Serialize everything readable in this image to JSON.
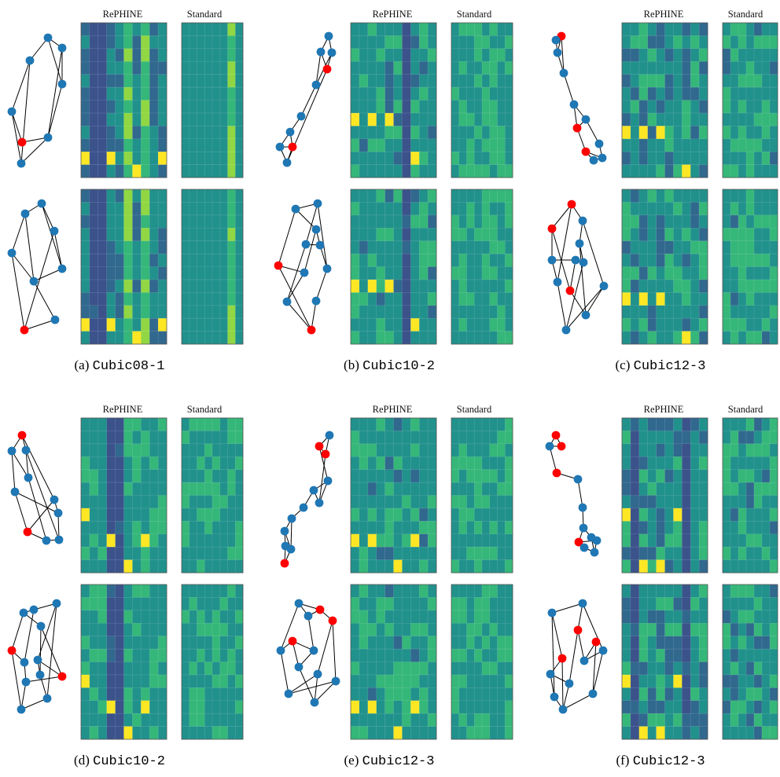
{
  "header_labels": [
    "RePHINE",
    "Standard"
  ],
  "colormap": [
    "#3b528b",
    "#31688e",
    "#21918c",
    "#35b779",
    "#90d743",
    "#fde725"
  ],
  "node_colors": {
    "normal": "#1f77b4",
    "highlighted": "#ff0000"
  },
  "panels": [
    {
      "tag": "(a)",
      "name": "Cubic08-1"
    },
    {
      "tag": "(b)",
      "name": "Cubic10-2"
    },
    {
      "tag": "(c)",
      "name": "Cubic12-3"
    },
    {
      "tag": "(d)",
      "name": "Cubic10-2"
    },
    {
      "tag": "(e)",
      "name": "Cubic12-3"
    },
    {
      "tag": "(f)",
      "name": "Cubic12-3"
    }
  ]
}
